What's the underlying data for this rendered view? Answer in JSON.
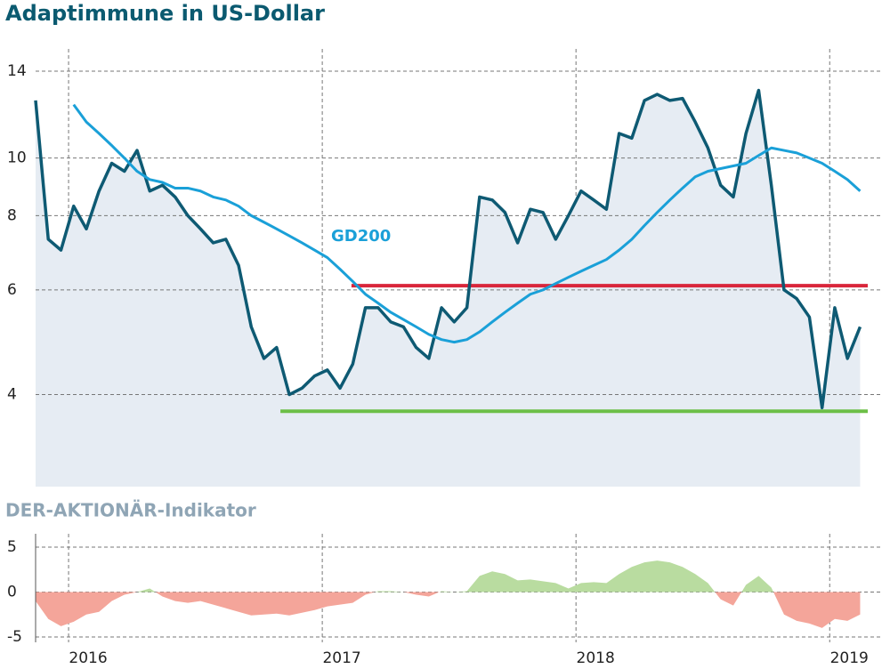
{
  "chart_data": [
    {
      "type": "line",
      "title": "Adaptimmune in US-Dollar",
      "log_scale": true,
      "x": [
        2015.87,
        2015.92,
        2015.97,
        2016.02,
        2016.07,
        2016.12,
        2016.17,
        2016.22,
        2016.27,
        2016.32,
        2016.37,
        2016.42,
        2016.47,
        2016.52,
        2016.57,
        2016.62,
        2016.67,
        2016.72,
        2016.77,
        2016.82,
        2016.87,
        2016.92,
        2016.97,
        2017.02,
        2017.07,
        2017.12,
        2017.17,
        2017.22,
        2017.27,
        2017.32,
        2017.37,
        2017.42,
        2017.47,
        2017.52,
        2017.57,
        2017.62,
        2017.67,
        2017.72,
        2017.77,
        2017.82,
        2017.87,
        2017.92,
        2017.97,
        2018.02,
        2018.07,
        2018.12,
        2018.17,
        2018.22,
        2018.27,
        2018.32,
        2018.37,
        2018.42,
        2018.47,
        2018.52,
        2018.57,
        2018.62,
        2018.67,
        2018.72,
        2018.77,
        2018.82,
        2018.87,
        2018.92,
        2018.97,
        2019.02,
        2019.07,
        2019.12
      ],
      "series": [
        {
          "name": "Adaptimmune",
          "color": "#0e5a73",
          "area_color": "#e6ecf3",
          "values": [
            12.5,
            7.3,
            7.0,
            8.3,
            7.6,
            8.8,
            9.8,
            9.5,
            10.3,
            8.8,
            9.0,
            8.6,
            8.0,
            7.6,
            7.2,
            7.3,
            6.6,
            5.2,
            4.6,
            4.8,
            4.0,
            4.1,
            4.3,
            4.4,
            4.1,
            4.5,
            5.6,
            5.6,
            5.3,
            5.2,
            4.8,
            4.6,
            5.6,
            5.3,
            5.6,
            8.6,
            8.5,
            8.1,
            7.2,
            8.2,
            8.1,
            7.3,
            8.0,
            8.8,
            8.5,
            8.2,
            11.0,
            10.8,
            12.5,
            12.8,
            12.5,
            12.6,
            11.5,
            10.4,
            9.0,
            8.6,
            11.0,
            13.0,
            9.0,
            6.0,
            5.8,
            5.4,
            3.8,
            5.6,
            4.6,
            5.2
          ]
        },
        {
          "name": "GD200",
          "color": "#1aa0d8",
          "values": [
            null,
            null,
            null,
            12.3,
            11.5,
            11.0,
            10.5,
            10.0,
            9.5,
            9.2,
            9.1,
            8.9,
            8.9,
            8.8,
            8.6,
            8.5,
            8.3,
            8.0,
            7.8,
            7.6,
            7.4,
            7.2,
            7.0,
            6.8,
            6.5,
            6.2,
            5.9,
            5.7,
            5.5,
            5.35,
            5.2,
            5.05,
            4.95,
            4.9,
            4.95,
            5.1,
            5.3,
            5.5,
            5.7,
            5.9,
            6.0,
            6.15,
            6.3,
            6.45,
            6.6,
            6.75,
            7.0,
            7.3,
            7.7,
            8.1,
            8.5,
            8.9,
            9.3,
            9.5,
            9.6,
            9.7,
            9.8,
            10.1,
            10.4,
            10.3,
            10.2,
            10.0,
            9.8,
            9.5,
            9.2,
            8.8
          ]
        }
      ],
      "hlines": [
        {
          "value": 6.1,
          "color": "#d9263b",
          "x": [
            2017.115,
            2019.15
          ]
        },
        {
          "value": 3.75,
          "color": "#6cbf47",
          "x": [
            2016.835,
            2019.15
          ]
        }
      ],
      "annotation": "GD200",
      "xlim": [
        2015.87,
        2019.15
      ],
      "xticks": [
        2016,
        2017,
        2018,
        2019
      ],
      "ylim": [
        2.8,
        15
      ],
      "yticks": [
        4,
        6,
        8,
        10,
        14
      ],
      "grid": true
    },
    {
      "type": "area",
      "title": "DER-AKTIONÄR-Indikator",
      "x": [
        2015.87,
        2015.92,
        2015.97,
        2016.02,
        2016.07,
        2016.12,
        2016.17,
        2016.22,
        2016.27,
        2016.32,
        2016.37,
        2016.42,
        2016.47,
        2016.52,
        2016.57,
        2016.62,
        2016.67,
        2016.72,
        2016.77,
        2016.82,
        2016.87,
        2016.92,
        2016.97,
        2017.02,
        2017.07,
        2017.12,
        2017.17,
        2017.22,
        2017.27,
        2017.32,
        2017.37,
        2017.42,
        2017.47,
        2017.52,
        2017.57,
        2017.62,
        2017.67,
        2017.72,
        2017.77,
        2017.82,
        2017.87,
        2017.92,
        2017.97,
        2018.02,
        2018.07,
        2018.12,
        2018.17,
        2018.22,
        2018.27,
        2018.32,
        2018.37,
        2018.42,
        2018.47,
        2018.52,
        2018.57,
        2018.62,
        2018.67,
        2018.72,
        2018.77,
        2018.82,
        2018.87,
        2018.92,
        2018.97,
        2019.02,
        2019.07,
        2019.12
      ],
      "positive_color": "#b9dca0",
      "negative_color": "#f4a59a",
      "values": [
        -1,
        -3,
        -3.8,
        -3.3,
        -2.5,
        -2.2,
        -1,
        -0.3,
        0,
        0.4,
        -0.5,
        -1,
        -1.2,
        -1,
        -1.4,
        -1.8,
        -2.2,
        -2.6,
        -2.5,
        -2.4,
        -2.6,
        -2.3,
        -2,
        -1.6,
        -1.4,
        -1.2,
        -0.3,
        0.1,
        0.1,
        0,
        -0.3,
        -0.5,
        0.1,
        0,
        0.1,
        1.8,
        2.3,
        2.0,
        1.3,
        1.4,
        1.2,
        1.0,
        0.4,
        1.0,
        1.1,
        1.0,
        2.0,
        2.8,
        3.3,
        3.5,
        3.3,
        2.8,
        2.0,
        1.0,
        -0.8,
        -1.5,
        0.8,
        1.8,
        0.5,
        -2.5,
        -3.2,
        -3.5,
        -4,
        -3,
        -3.2,
        -2.5
      ],
      "xlim": [
        2015.87,
        2019.15
      ],
      "xticks": [
        2016,
        2017,
        2018,
        2019
      ],
      "ylim": [
        -5,
        5
      ],
      "yticks": [
        -5,
        0,
        5
      ],
      "grid": true
    }
  ]
}
